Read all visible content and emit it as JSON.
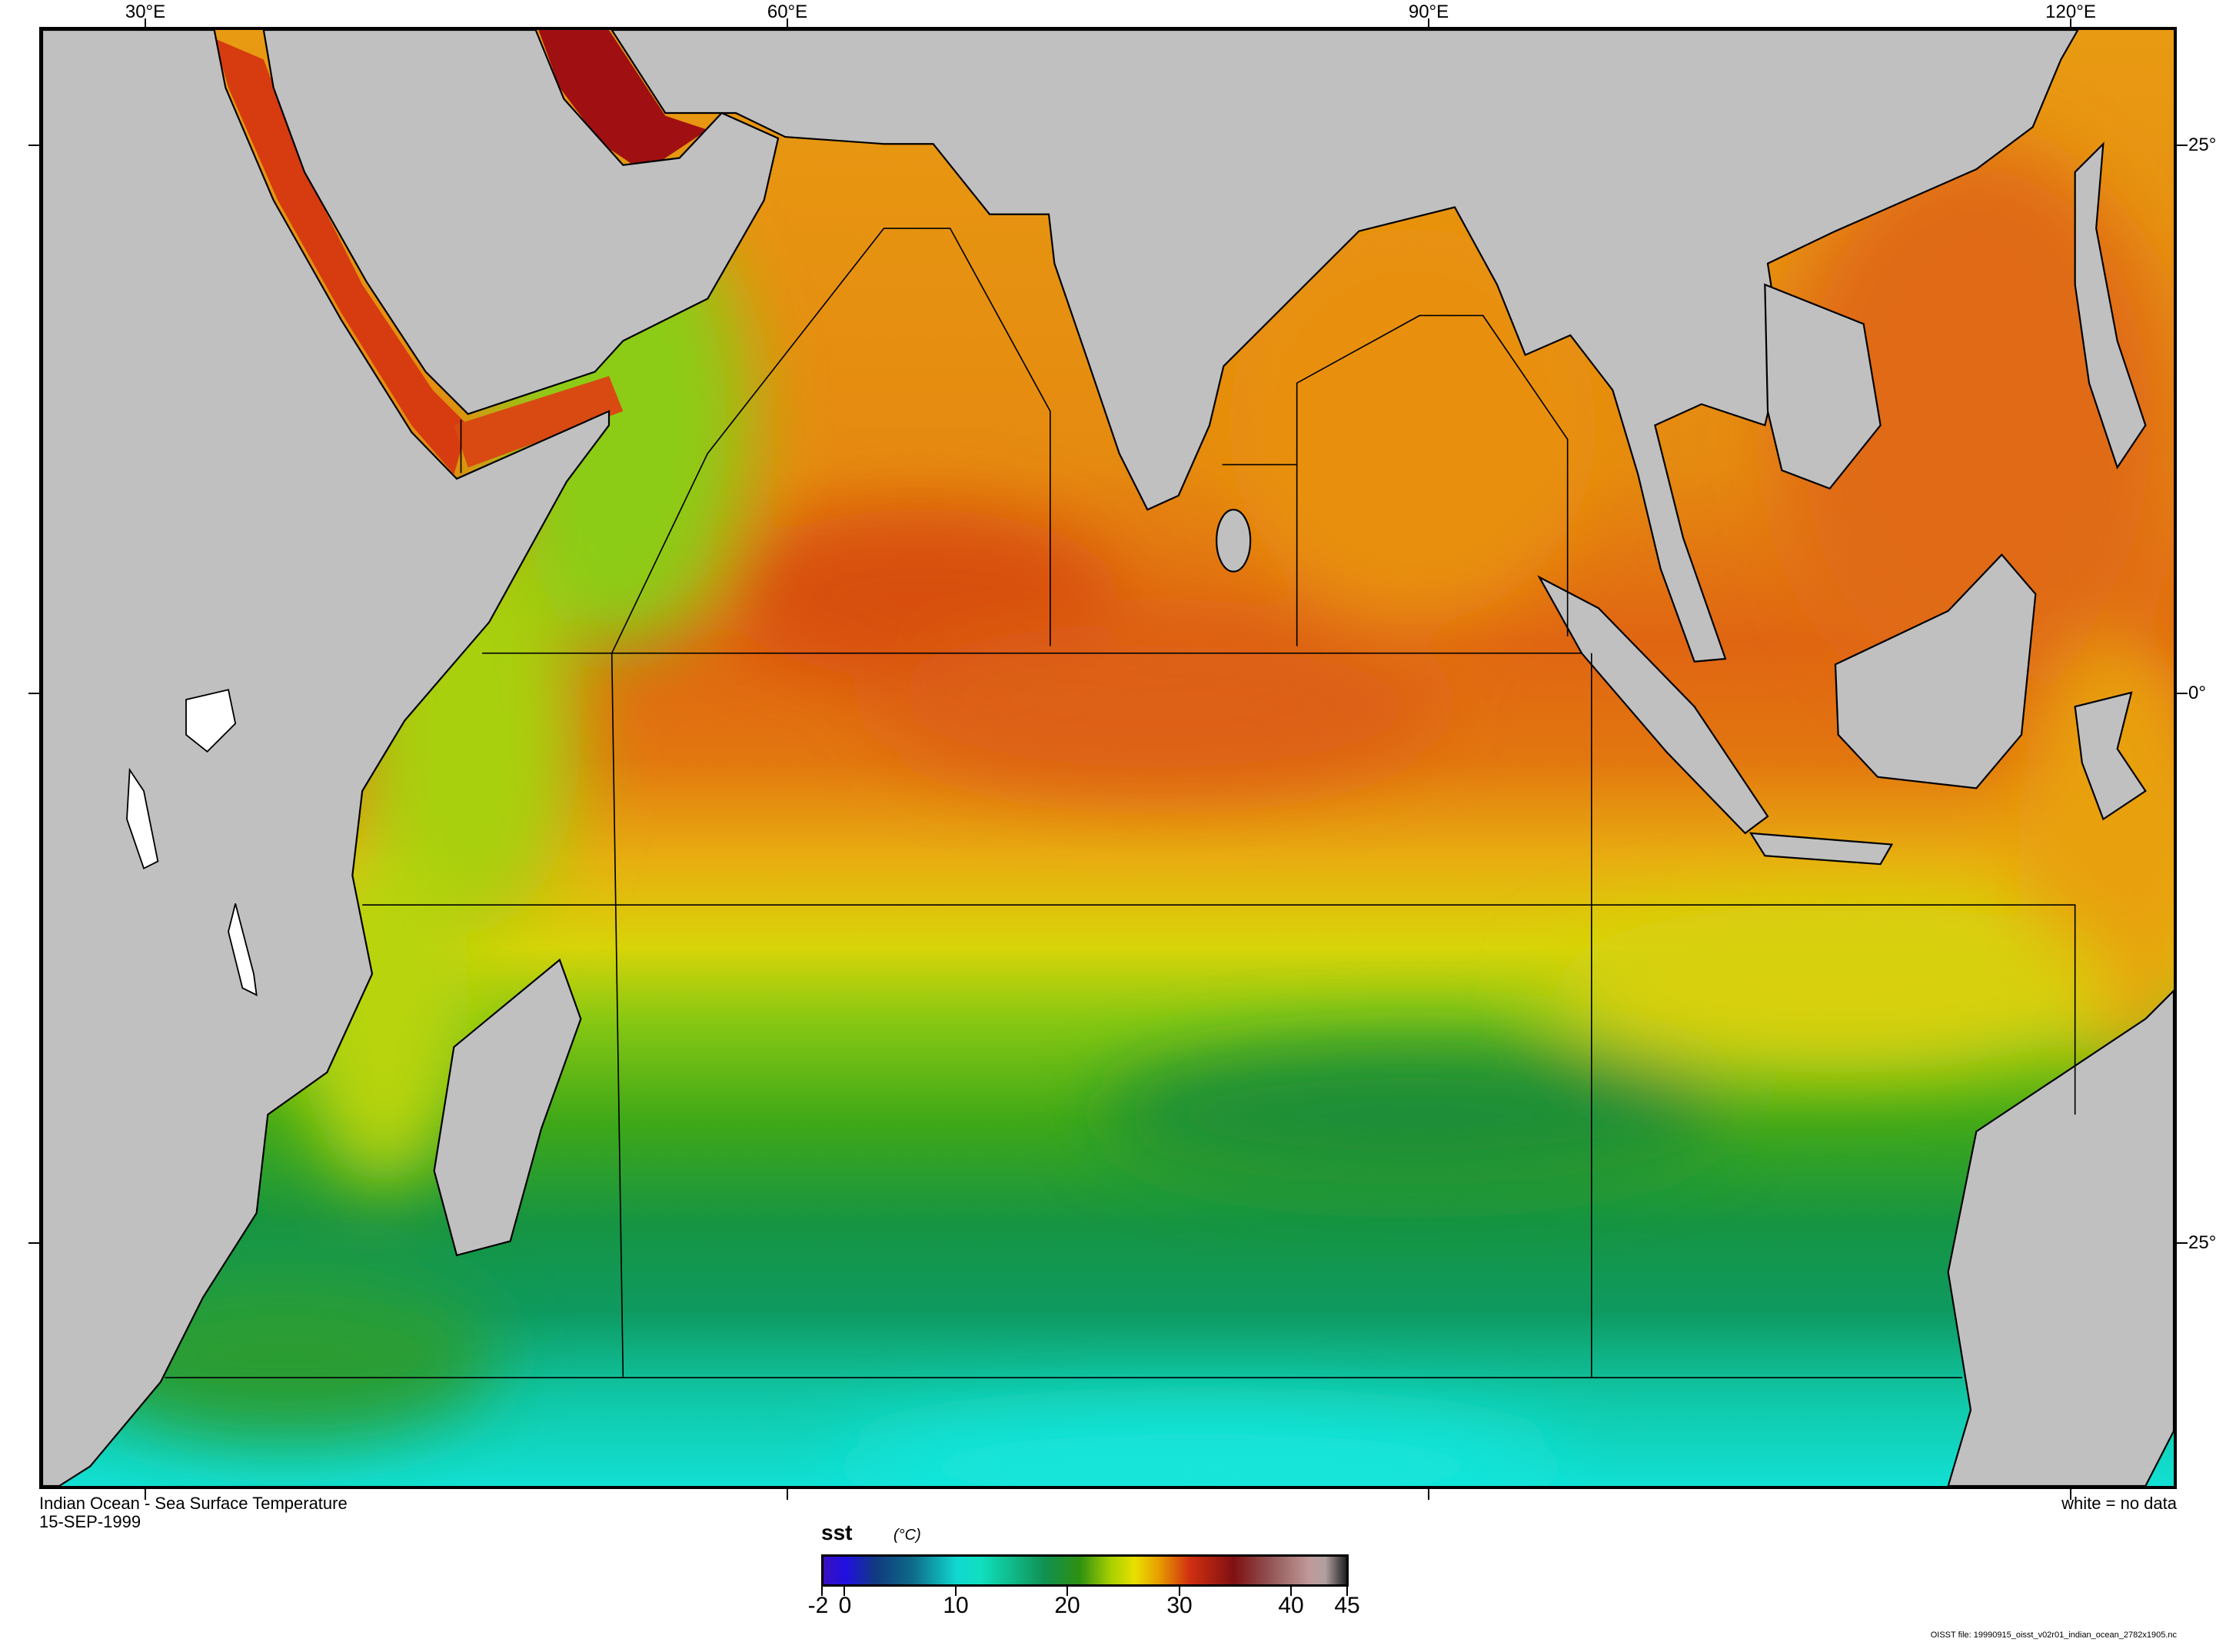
{
  "map": {
    "title": "Indian Ocean - Sea Surface Temperature",
    "date": "15-SEP-1999",
    "no_data_note": "white = no data",
    "file_note": "OISST file: 19990915_oisst_v02r01_indian_ocean_2782x1905.nc",
    "lon_labels": [
      "30°E",
      "60°E",
      "90°E",
      "120°E"
    ],
    "lat_labels": [
      "25°",
      "0°",
      "25°"
    ],
    "colors": {
      "land": "#c0c0c0",
      "coast": "#000000"
    }
  },
  "colorbar": {
    "variable": "sst",
    "units": "(°C)",
    "range": [
      -2,
      45
    ],
    "ticks": [
      "-2",
      "0",
      "10",
      "20",
      "30",
      "40",
      "45"
    ]
  }
}
